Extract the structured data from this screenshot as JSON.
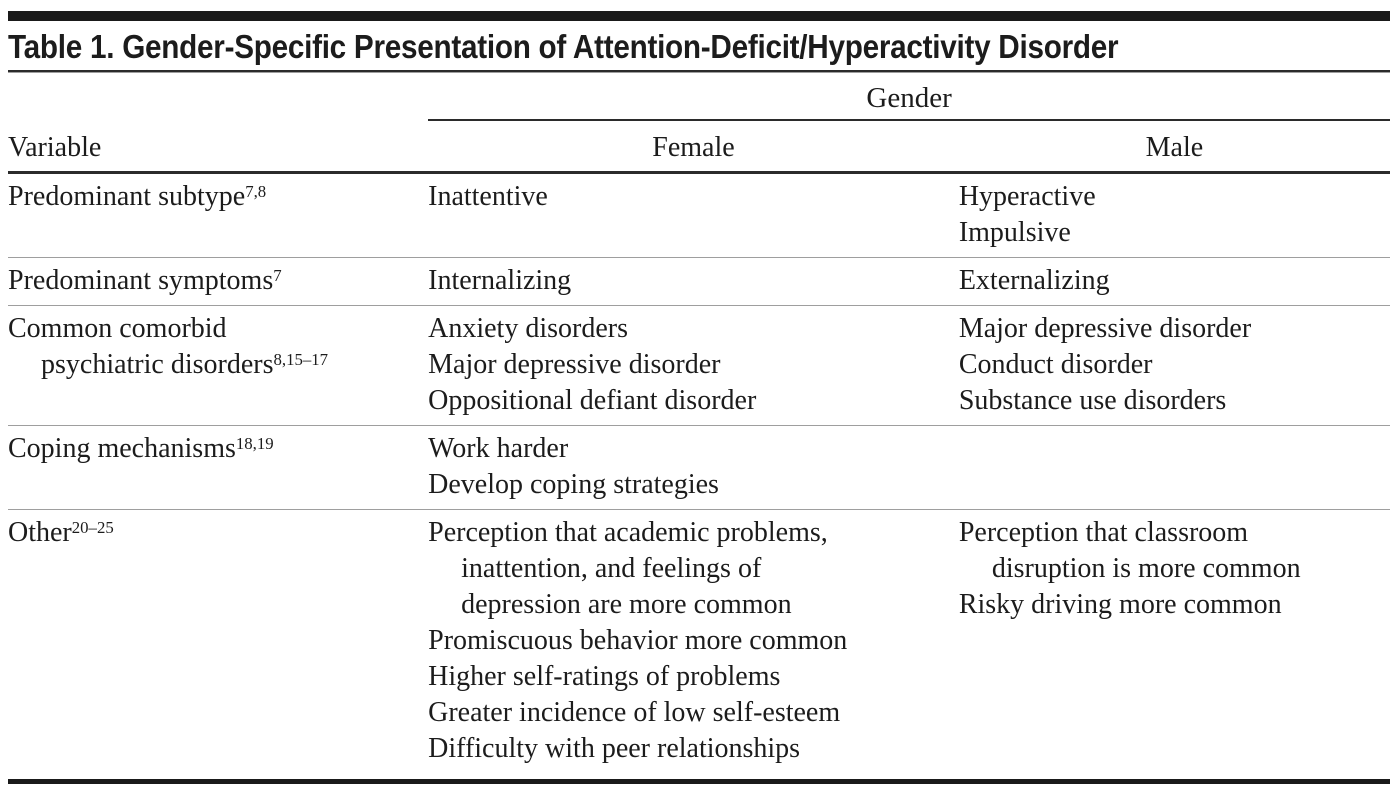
{
  "title": "Table 1. Gender-Specific Presentation of Attention-Deficit/Hyperactivity Disorder",
  "header": {
    "group_label": "Gender",
    "col_variable": "Variable",
    "col_female": "Female",
    "col_male": "Male"
  },
  "rows": [
    {
      "variable": {
        "text": "Predominant subtype",
        "superscript": "7,8"
      },
      "female": [
        "Inattentive"
      ],
      "male": [
        "Hyperactive",
        "Impulsive"
      ]
    },
    {
      "variable": {
        "text": "Predominant symptoms",
        "superscript": "7"
      },
      "female": [
        "Internalizing"
      ],
      "male": [
        "Externalizing"
      ]
    },
    {
      "variable": {
        "text": "Common comorbid\npsychiatric disorders",
        "superscript": "8,15–17"
      },
      "female": [
        "Anxiety disorders",
        "Major depressive disorder",
        "Oppositional defiant disorder"
      ],
      "male": [
        "Major depressive disorder",
        "Conduct disorder",
        "Substance use disorders"
      ]
    },
    {
      "variable": {
        "text": "Coping mechanisms",
        "superscript": "18,19"
      },
      "female": [
        "Work harder",
        "Develop coping strategies"
      ],
      "male": []
    },
    {
      "variable": {
        "text": "Other",
        "superscript": "20–25"
      },
      "female": [
        "Perception that academic problems,\ninattention, and feelings of\ndepression are more common",
        "Promiscuous behavior more common",
        "Higher self-ratings of problems",
        "Greater incidence of low self-esteem",
        "Difficulty with peer relationships"
      ],
      "male": [
        "Perception that classroom\ndisruption is more common",
        "Risky driving more common"
      ]
    }
  ],
  "colors": {
    "text": "#1c1c1c",
    "rule_dark": "#2b2b2b",
    "rule_light": "#9e9e9e",
    "bar_black": "#1a1a1a",
    "background": "#ffffff"
  }
}
